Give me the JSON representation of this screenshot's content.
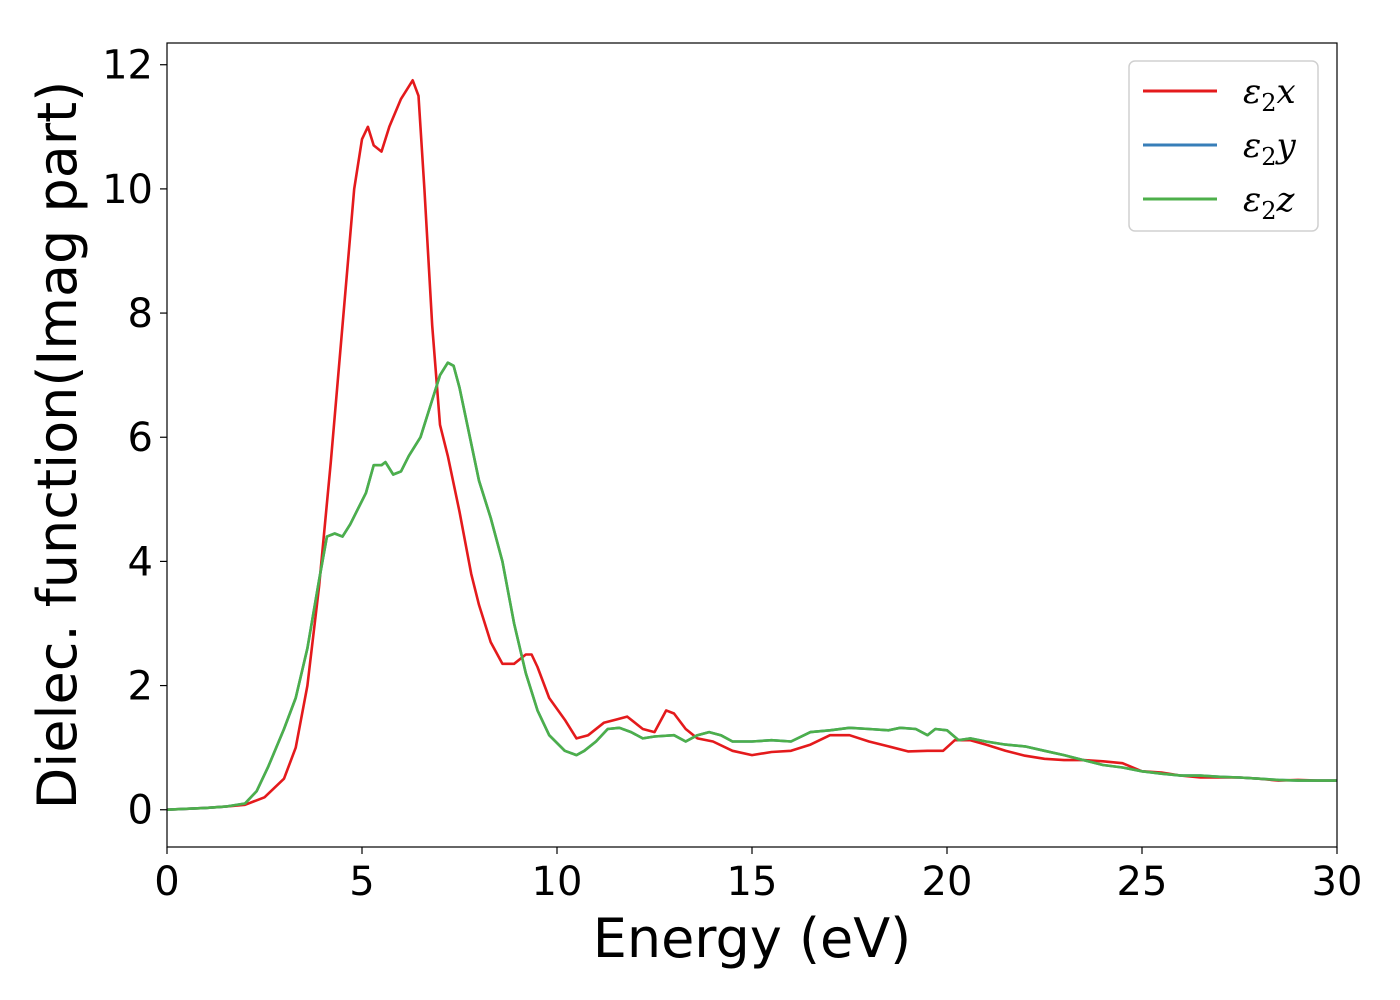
{
  "chart_data": {
    "type": "line",
    "title": "",
    "xlabel": "Energy (eV)",
    "ylabel": "Dielec. function(Imag part)",
    "xlim": [
      0,
      30
    ],
    "ylim": [
      -0.6,
      12.35
    ],
    "xticks": [
      "0",
      "5",
      "10",
      "15",
      "20",
      "25",
      "30"
    ],
    "yticks": [
      "0",
      "2",
      "4",
      "6",
      "8",
      "10",
      "12"
    ],
    "xtick_values": [
      0,
      5,
      10,
      15,
      20,
      25,
      30
    ],
    "ytick_values": [
      0,
      2,
      4,
      6,
      8,
      10,
      12
    ],
    "grid": false,
    "legend_position": "top-right",
    "legend": [
      {
        "symbol": "ε",
        "sub": "2",
        "axis": "x",
        "color": "#e41a1c"
      },
      {
        "symbol": "ε",
        "sub": "2",
        "axis": "y",
        "color": "#377eb8"
      },
      {
        "symbol": "ε",
        "sub": "2",
        "axis": "z",
        "color": "#4daf4a"
      }
    ],
    "series": [
      {
        "color": "#e41a1c",
        "x": [
          0,
          1,
          1.5,
          2.0,
          2.5,
          3.0,
          3.3,
          3.6,
          3.9,
          4.2,
          4.5,
          4.8,
          5.0,
          5.15,
          5.3,
          5.5,
          5.7,
          6.0,
          6.15,
          6.3,
          6.45,
          6.6,
          6.8,
          7.0,
          7.2,
          7.5,
          7.8,
          8.0,
          8.3,
          8.6,
          8.9,
          9.2,
          9.35,
          9.5,
          9.8,
          10.2,
          10.5,
          10.8,
          11.2,
          11.5,
          11.8,
          12.2,
          12.5,
          12.8,
          13.0,
          13.3,
          13.6,
          14.0,
          14.5,
          15.0,
          15.5,
          16.0,
          16.5,
          17.0,
          17.5,
          18.0,
          18.5,
          19.0,
          19.5,
          19.9,
          20.2,
          20.6,
          21.0,
          21.5,
          22.0,
          22.5,
          23.0,
          23.5,
          24.0,
          24.5,
          25.0,
          25.5,
          26.0,
          26.5,
          27.0,
          27.5,
          28.0,
          28.5,
          29.0,
          29.5,
          30.0
        ],
        "y": [
          0.0,
          0.03,
          0.05,
          0.08,
          0.2,
          0.5,
          1.0,
          2.0,
          3.6,
          5.6,
          7.8,
          10.0,
          10.8,
          11.0,
          10.7,
          10.6,
          11.0,
          11.45,
          11.6,
          11.75,
          11.5,
          10.0,
          7.8,
          6.2,
          5.7,
          4.8,
          3.8,
          3.3,
          2.7,
          2.35,
          2.35,
          2.5,
          2.5,
          2.3,
          1.8,
          1.45,
          1.15,
          1.2,
          1.4,
          1.45,
          1.5,
          1.3,
          1.25,
          1.6,
          1.55,
          1.3,
          1.15,
          1.1,
          0.95,
          0.88,
          0.93,
          0.95,
          1.05,
          1.2,
          1.2,
          1.1,
          1.02,
          0.94,
          0.95,
          0.95,
          1.12,
          1.12,
          1.05,
          0.95,
          0.87,
          0.82,
          0.8,
          0.8,
          0.78,
          0.75,
          0.62,
          0.6,
          0.55,
          0.52,
          0.52,
          0.52,
          0.5,
          0.47,
          0.48,
          0.47,
          0.47
        ]
      },
      {
        "color": "#377eb8",
        "x": [
          0,
          1,
          1.5,
          2.0,
          2.3,
          2.6,
          3.0,
          3.3,
          3.6,
          3.9,
          4.1,
          4.3,
          4.5,
          4.7,
          4.9,
          5.1,
          5.3,
          5.5,
          5.6,
          5.8,
          6.0,
          6.2,
          6.5,
          6.8,
          7.0,
          7.2,
          7.35,
          7.5,
          7.7,
          8.0,
          8.3,
          8.6,
          8.9,
          9.2,
          9.5,
          9.8,
          10.2,
          10.5,
          10.7,
          11.0,
          11.3,
          11.6,
          11.9,
          12.2,
          12.5,
          13.0,
          13.3,
          13.6,
          13.9,
          14.2,
          14.5,
          15.0,
          15.5,
          16.0,
          16.5,
          17.0,
          17.5,
          18.0,
          18.5,
          18.8,
          19.2,
          19.5,
          19.7,
          20.0,
          20.3,
          20.6,
          21.0,
          21.5,
          22.0,
          22.5,
          23.0,
          23.5,
          24.0,
          24.5,
          25.0,
          25.5,
          26.0,
          26.5,
          27.0,
          27.5,
          28.0,
          28.5,
          29.0,
          29.5,
          30.0
        ],
        "y": [
          0.0,
          0.03,
          0.05,
          0.1,
          0.3,
          0.7,
          1.3,
          1.8,
          2.6,
          3.7,
          4.4,
          4.45,
          4.4,
          4.6,
          4.85,
          5.1,
          5.55,
          5.55,
          5.6,
          5.4,
          5.45,
          5.7,
          6.0,
          6.6,
          7.0,
          7.2,
          7.15,
          6.8,
          6.2,
          5.3,
          4.7,
          4.0,
          3.0,
          2.2,
          1.6,
          1.2,
          0.95,
          0.88,
          0.95,
          1.1,
          1.3,
          1.32,
          1.25,
          1.15,
          1.18,
          1.2,
          1.1,
          1.2,
          1.25,
          1.2,
          1.1,
          1.1,
          1.12,
          1.1,
          1.25,
          1.28,
          1.32,
          1.3,
          1.28,
          1.32,
          1.3,
          1.2,
          1.3,
          1.28,
          1.12,
          1.15,
          1.1,
          1.05,
          1.02,
          0.95,
          0.88,
          0.8,
          0.72,
          0.68,
          0.62,
          0.58,
          0.55,
          0.55,
          0.53,
          0.52,
          0.5,
          0.48,
          0.47,
          0.47,
          0.47
        ]
      },
      {
        "color": "#4daf4a",
        "x": [
          0,
          1,
          1.5,
          2.0,
          2.3,
          2.6,
          3.0,
          3.3,
          3.6,
          3.9,
          4.1,
          4.3,
          4.5,
          4.7,
          4.9,
          5.1,
          5.3,
          5.5,
          5.6,
          5.8,
          6.0,
          6.2,
          6.5,
          6.8,
          7.0,
          7.2,
          7.35,
          7.5,
          7.7,
          8.0,
          8.3,
          8.6,
          8.9,
          9.2,
          9.5,
          9.8,
          10.2,
          10.5,
          10.7,
          11.0,
          11.3,
          11.6,
          11.9,
          12.2,
          12.5,
          13.0,
          13.3,
          13.6,
          13.9,
          14.2,
          14.5,
          15.0,
          15.5,
          16.0,
          16.5,
          17.0,
          17.5,
          18.0,
          18.5,
          18.8,
          19.2,
          19.5,
          19.7,
          20.0,
          20.3,
          20.6,
          21.0,
          21.5,
          22.0,
          22.5,
          23.0,
          23.5,
          24.0,
          24.5,
          25.0,
          25.5,
          26.0,
          26.5,
          27.0,
          27.5,
          28.0,
          28.5,
          29.0,
          29.5,
          30.0
        ],
        "y": [
          0.0,
          0.03,
          0.05,
          0.1,
          0.3,
          0.7,
          1.3,
          1.8,
          2.6,
          3.7,
          4.4,
          4.45,
          4.4,
          4.6,
          4.85,
          5.1,
          5.55,
          5.55,
          5.6,
          5.4,
          5.45,
          5.7,
          6.0,
          6.6,
          7.0,
          7.2,
          7.15,
          6.8,
          6.2,
          5.3,
          4.7,
          4.0,
          3.0,
          2.2,
          1.6,
          1.2,
          0.95,
          0.88,
          0.95,
          1.1,
          1.3,
          1.32,
          1.25,
          1.15,
          1.18,
          1.2,
          1.1,
          1.2,
          1.25,
          1.2,
          1.1,
          1.1,
          1.12,
          1.1,
          1.25,
          1.28,
          1.32,
          1.3,
          1.28,
          1.32,
          1.3,
          1.2,
          1.3,
          1.28,
          1.12,
          1.15,
          1.1,
          1.05,
          1.02,
          0.95,
          0.88,
          0.8,
          0.72,
          0.68,
          0.62,
          0.58,
          0.55,
          0.55,
          0.53,
          0.52,
          0.5,
          0.48,
          0.47,
          0.47,
          0.47
        ]
      }
    ]
  }
}
